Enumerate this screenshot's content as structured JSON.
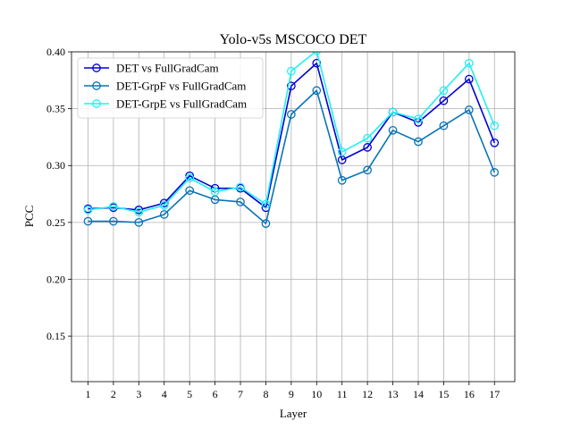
{
  "chart_data": {
    "type": "line",
    "title": "Yolo-v5s MSCOCO DET",
    "xlabel": "Layer",
    "ylabel": "PCC",
    "x": [
      1,
      2,
      3,
      4,
      5,
      6,
      7,
      8,
      9,
      10,
      11,
      12,
      13,
      14,
      15,
      16,
      17
    ],
    "xlim": [
      0.35,
      17.8
    ],
    "ylim": [
      0.11,
      0.4
    ],
    "yticks": [
      0.15,
      0.2,
      0.25,
      0.3,
      0.35,
      0.4
    ],
    "grid": true,
    "legend_position": "top-left",
    "series": [
      {
        "name": "DET vs FullGradCam",
        "color": "#0000d8",
        "values": [
          0.262,
          0.263,
          0.261,
          0.267,
          0.291,
          0.28,
          0.28,
          0.263,
          0.37,
          0.39,
          0.305,
          0.316,
          0.347,
          0.338,
          0.357,
          0.376,
          0.32
        ]
      },
      {
        "name": "DET-GrpF vs FullGradCam",
        "color": "#0a74b4",
        "values": [
          0.251,
          0.251,
          0.25,
          0.257,
          0.278,
          0.27,
          0.268,
          0.249,
          0.345,
          0.366,
          0.287,
          0.296,
          0.331,
          0.321,
          0.335,
          0.349,
          0.294
        ]
      },
      {
        "name": "DET-GrpE vs FullGradCam",
        "color": "#22f0f0",
        "values": [
          0.261,
          0.264,
          0.259,
          0.265,
          0.289,
          0.277,
          0.281,
          0.266,
          0.383,
          0.401,
          0.312,
          0.324,
          0.347,
          0.341,
          0.366,
          0.39,
          0.335
        ]
      }
    ]
  }
}
